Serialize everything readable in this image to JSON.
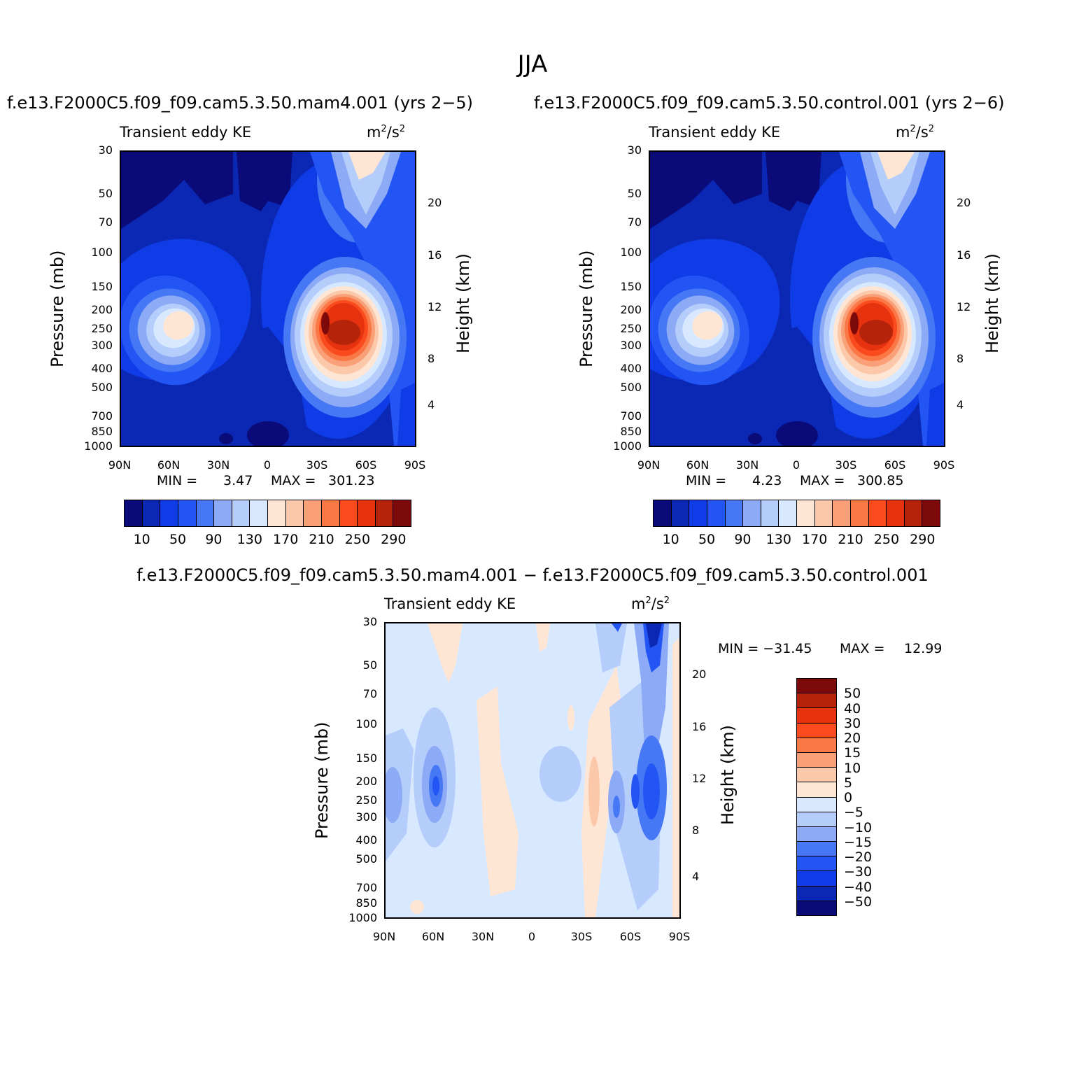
{
  "figure_title": "JJA",
  "panels": [
    {
      "title": "f.e13.F2000C5.f09_f09.cam5.3.50.mam4.001 (yrs 2−5)",
      "variable": "Transient eddy KE",
      "units_base": "m",
      "units_mid": "/s",
      "units_exp": "2",
      "min_label": "MIN =",
      "min_value": "3.47",
      "max_label": "MAX =",
      "max_value": "301.23"
    },
    {
      "title": "f.e13.F2000C5.f09_f09.cam5.3.50.control.001 (yrs 2−6)",
      "variable": "Transient eddy KE",
      "units_base": "m",
      "units_mid": "/s",
      "units_exp": "2",
      "min_label": "MIN =",
      "min_value": "4.23",
      "max_label": "MAX =",
      "max_value": "300.85"
    },
    {
      "title": "f.e13.F2000C5.f09_f09.cam5.3.50.mam4.001 − f.e13.F2000C5.f09_f09.cam5.3.50.control.001",
      "variable": "Transient eddy KE",
      "units_base": "m",
      "units_mid": "/s",
      "units_exp": "2",
      "min_label": "MIN = −31.45",
      "max_label": "MAX =",
      "max_value": "12.99"
    }
  ],
  "axes": {
    "xticks": [
      "90N",
      "60N",
      "30N",
      "0",
      "30S",
      "60S",
      "90S"
    ],
    "pressure_ticks": [
      "30",
      "50",
      "70",
      "100",
      "150",
      "200",
      "250",
      "300",
      "400",
      "500",
      "700",
      "850",
      "1000"
    ],
    "height_ticks": [
      "20",
      "16",
      "12",
      "8",
      "4"
    ],
    "ylabel_left": "Pressure (mb)",
    "ylabel_right": "Height (km)"
  },
  "colorbar_main": {
    "colors": [
      "#0a0a78",
      "#0a28b4",
      "#0f3ce6",
      "#2355f5",
      "#4678f5",
      "#8caaf5",
      "#b4cdfa",
      "#d7e8ff",
      "#ffe6d4",
      "#fcc8aa",
      "#f9a078",
      "#fa7846",
      "#fa4b1e",
      "#e6320f",
      "#b4230a",
      "#7d0a0a"
    ],
    "labels": [
      "10",
      "50",
      "90",
      "130",
      "170",
      "210",
      "250",
      "290"
    ]
  },
  "colorbar_diff": {
    "colors": [
      "#7d0a0a",
      "#b4230a",
      "#e6320f",
      "#fa4b1e",
      "#fa7846",
      "#f9a078",
      "#fcc8aa",
      "#ffe6d4",
      "#d7e8ff",
      "#b4cdfa",
      "#8caaf5",
      "#4678f5",
      "#2355f5",
      "#0f3ce6",
      "#0a28b4",
      "#0a0a78"
    ],
    "labels": [
      "50",
      "40",
      "30",
      "20",
      "15",
      "10",
      "5",
      "0",
      "−5",
      "−10",
      "−15",
      "−20",
      "−30",
      "−40",
      "−50"
    ]
  },
  "chart_data": [
    {
      "type": "heatmap",
      "title": "f.e13.F2000C5.f09_f09.cam5.3.50.mam4.001 (yrs 2−5)",
      "variable": "Transient eddy KE",
      "units": "m2/s2",
      "x": [
        "90N",
        "60N",
        "30N",
        "0",
        "30S",
        "60S",
        "90S"
      ],
      "y_pressure_mb": [
        30,
        50,
        70,
        100,
        150,
        200,
        250,
        300,
        400,
        500,
        700,
        850,
        1000
      ],
      "y_height_km": [
        20,
        16,
        12,
        8,
        4
      ],
      "levels": [
        10,
        30,
        50,
        70,
        90,
        110,
        130,
        150,
        170,
        190,
        210,
        230,
        250,
        270,
        290
      ],
      "min": 3.47,
      "max": 301.23
    },
    {
      "type": "heatmap",
      "title": "f.e13.F2000C5.f09_f09.cam5.3.50.control.001 (yrs 2−6)",
      "variable": "Transient eddy KE",
      "units": "m2/s2",
      "x": [
        "90N",
        "60N",
        "30N",
        "0",
        "30S",
        "60S",
        "90S"
      ],
      "y_pressure_mb": [
        30,
        50,
        70,
        100,
        150,
        200,
        250,
        300,
        400,
        500,
        700,
        850,
        1000
      ],
      "y_height_km": [
        20,
        16,
        12,
        8,
        4
      ],
      "levels": [
        10,
        30,
        50,
        70,
        90,
        110,
        130,
        150,
        170,
        190,
        210,
        230,
        250,
        270,
        290
      ],
      "min": 4.23,
      "max": 300.85
    },
    {
      "type": "heatmap",
      "title": "f.e13.F2000C5.f09_f09.cam5.3.50.mam4.001 − f.e13.F2000C5.f09_f09.cam5.3.50.control.001",
      "variable": "Transient eddy KE",
      "units": "m2/s2",
      "x": [
        "90N",
        "60N",
        "30N",
        "0",
        "30S",
        "60S",
        "90S"
      ],
      "y_pressure_mb": [
        30,
        50,
        70,
        100,
        150,
        200,
        250,
        300,
        400,
        500,
        700,
        850,
        1000
      ],
      "y_height_km": [
        20,
        16,
        12,
        8,
        4
      ],
      "levels": [
        -50,
        -40,
        -30,
        -20,
        -15,
        -10,
        -5,
        0,
        5,
        10,
        15,
        20,
        30,
        40,
        50
      ],
      "min": -31.45,
      "max": 12.99
    }
  ]
}
